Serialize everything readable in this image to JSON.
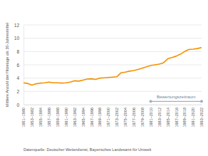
{
  "chart_data": {
    "type": "line",
    "y_label": "Mittlere Anzahl der Hitzetage als 30-Jahresmittel",
    "source": "Datenquelle: Deutscher Wetterdienst, Bayerisches Landesamt für Umwelt",
    "categories": [
      "1951–1980",
      null,
      "1953–1982",
      null,
      "1955–1984",
      null,
      "1957–1986",
      null,
      "1959–1988",
      null,
      "1961–1990",
      null,
      "1963–1992",
      null,
      "1965–1994",
      null,
      "1967–1996",
      null,
      "1969–1998",
      null,
      "1971–2000",
      null,
      "1973–2002",
      null,
      "1975–2004",
      null,
      "1977–2006",
      null,
      "1979–2008",
      null,
      "1981–2010",
      null,
      "1983–2012",
      null,
      "1985–2014",
      null,
      "1987–2016",
      null,
      "1989–2018",
      null,
      "1991–2020",
      null,
      "1993–2022"
    ],
    "series": [
      {
        "color": "#f39200",
        "values": [
          3.3,
          3.2,
          2.95,
          3.15,
          3.25,
          3.3,
          3.4,
          3.3,
          3.3,
          3.25,
          3.3,
          3.4,
          3.6,
          3.55,
          3.7,
          3.85,
          3.9,
          3.8,
          4.0,
          4.05,
          4.1,
          4.15,
          4.2,
          4.8,
          4.9,
          5.05,
          5.15,
          5.3,
          5.5,
          5.7,
          5.9,
          6.0,
          6.1,
          6.3,
          6.9,
          7.1,
          7.3,
          7.6,
          8.0,
          8.3,
          8.35,
          8.45,
          8.6
        ]
      },
      {
        "name": "Bewertungszeitraum",
        "color": "#9fb1c2",
        "marker": "circle",
        "values": [
          null,
          null,
          null,
          null,
          null,
          null,
          null,
          null,
          null,
          null,
          null,
          null,
          null,
          null,
          null,
          null,
          null,
          null,
          null,
          null,
          null,
          null,
          null,
          null,
          null,
          null,
          null,
          null,
          null,
          null,
          0.5,
          0.5,
          0.5,
          0.5,
          0.5,
          0.5,
          0.5,
          0.5,
          0.5,
          0.5,
          0.5,
          0.5,
          0.5
        ]
      }
    ],
    "ylim": [
      0,
      12
    ],
    "yticks": [
      0,
      2,
      4,
      6,
      8,
      10,
      12
    ],
    "grid": true
  }
}
